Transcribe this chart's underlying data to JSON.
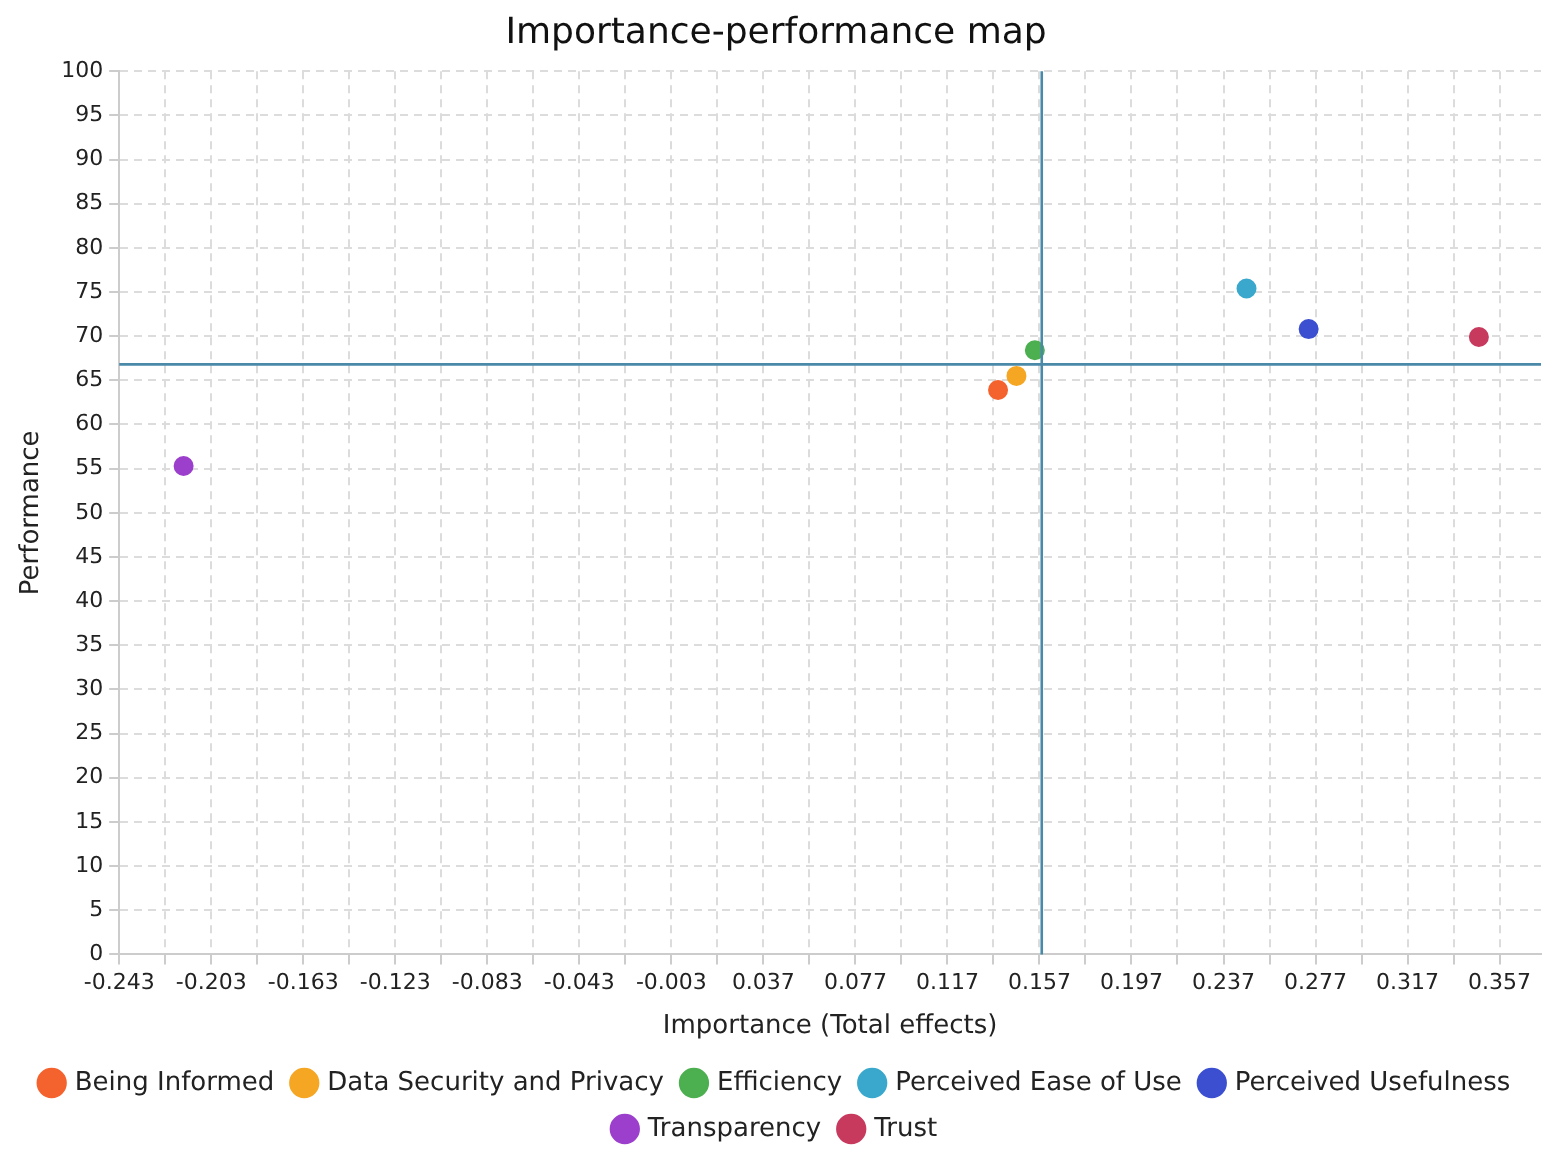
{
  "chart_data": {
    "type": "scatter",
    "title": "Importance-performance map",
    "xlabel": "Importance (Total effects)",
    "ylabel": "Performance",
    "series": [
      {
        "name": "Being Informed",
        "color": "#f4622e",
        "x": [
          0.139
        ],
        "values": [
          63.9
        ]
      },
      {
        "name": "Data Security and Privacy",
        "color": "#f5a623",
        "x": [
          0.147
        ],
        "values": [
          65.5
        ]
      },
      {
        "name": "Efficiency",
        "color": "#4caf50",
        "x": [
          0.155
        ],
        "values": [
          68.4
        ]
      },
      {
        "name": "Perceived Ease of Use",
        "color": "#3aa8cc",
        "x": [
          0.247
        ],
        "values": [
          75.4
        ]
      },
      {
        "name": "Perceived Usefulness",
        "color": "#3b4fd0",
        "x": [
          0.274
        ],
        "values": [
          70.8
        ]
      },
      {
        "name": "Transparency",
        "color": "#9b3fcc",
        "x": [
          -0.215
        ],
        "values": [
          55.3
        ]
      },
      {
        "name": "Trust",
        "color": "#c73a5e",
        "x": [
          0.348
        ],
        "values": [
          69.9
        ]
      }
    ],
    "xlim": [
      -0.243,
      0.375
    ],
    "xticks": [
      -0.243,
      {
        "value": -0.223,
        "label": null
      },
      -0.203,
      {
        "value": -0.183,
        "label": null
      },
      -0.163,
      {
        "value": -0.143,
        "label": null
      },
      -0.123,
      {
        "value": -0.103,
        "label": null
      },
      -0.083,
      {
        "value": -0.063,
        "label": null
      },
      -0.043,
      {
        "value": -0.023,
        "label": null
      },
      -0.003,
      {
        "value": 0.017,
        "label": null
      },
      0.037,
      {
        "value": 0.057,
        "label": null
      },
      0.077,
      {
        "value": 0.097,
        "label": null
      },
      0.117,
      {
        "value": 0.137,
        "label": null
      },
      0.157,
      {
        "value": 0.177,
        "label": null
      },
      0.197,
      {
        "value": 0.217,
        "label": null
      },
      0.237,
      {
        "value": 0.257,
        "label": null
      },
      0.277,
      {
        "value": 0.297,
        "label": null
      },
      0.317,
      {
        "value": 0.337,
        "label": null
      },
      0.357
    ],
    "ylim": [
      0,
      100
    ],
    "yticks": [
      0,
      5,
      10,
      15,
      20,
      25,
      30,
      35,
      40,
      45,
      50,
      55,
      60,
      65,
      70,
      75,
      80,
      85,
      90,
      95,
      100
    ],
    "ref_lines": [
      {
        "axis": "x",
        "value": 0.158,
        "color": "#4a8aa8"
      },
      {
        "axis": "y",
        "value": 66.8,
        "color": "#4a8aa8"
      }
    ],
    "grid": true,
    "marker": "circle",
    "legend": "bottom"
  }
}
